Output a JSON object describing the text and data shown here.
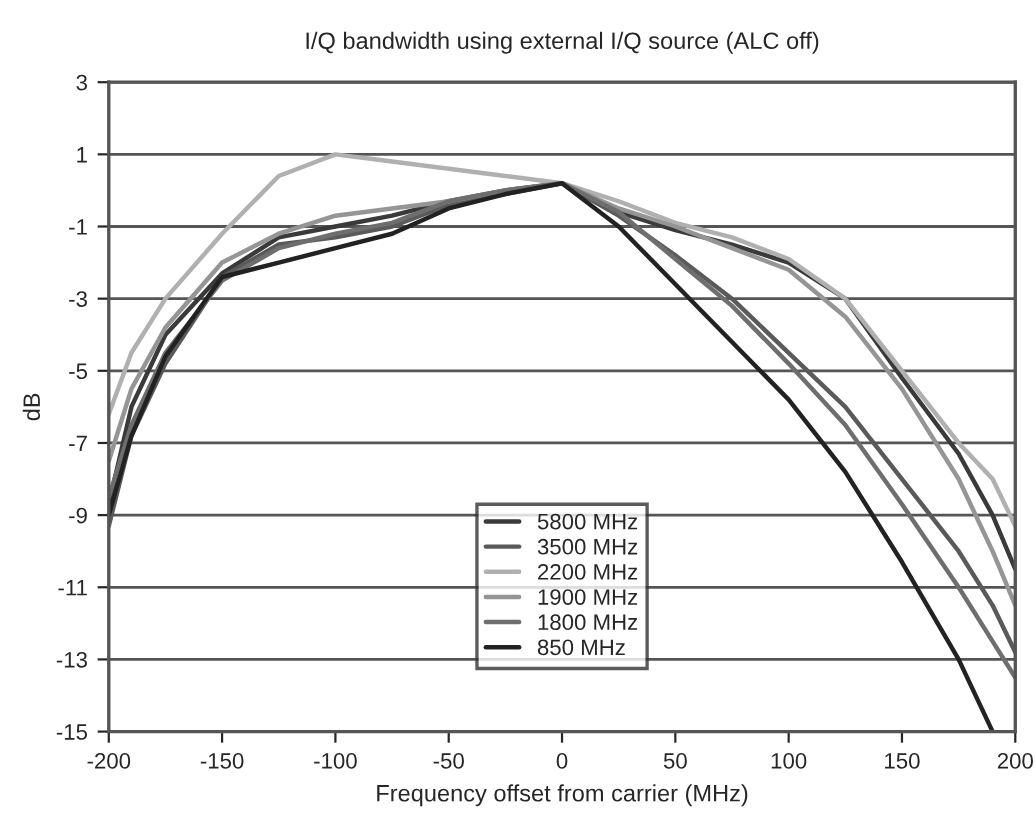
{
  "chart_data": {
    "type": "line",
    "title": "I/Q bandwidth using external I/Q source (ALC off)",
    "xlabel": "Frequency offset from carrier (MHz)",
    "ylabel": "dB",
    "x": [
      -200,
      -190,
      -175,
      -150,
      -125,
      -100,
      -75,
      -50,
      -25,
      0,
      25,
      50,
      75,
      100,
      125,
      150,
      175,
      190,
      200
    ],
    "xlim": [
      -200,
      200
    ],
    "xticks": [
      -200,
      -150,
      -100,
      -50,
      0,
      50,
      100,
      150,
      200
    ],
    "ylim": [
      -15,
      3
    ],
    "yticks": [
      -15,
      -13,
      -11,
      -9,
      -7,
      -5,
      -3,
      -1,
      1,
      3
    ],
    "grid": "y",
    "legend": "bottom",
    "line_style": "solid",
    "marker": "none",
    "series": [
      {
        "name": "5800 MHz",
        "color": "#3a3a3a",
        "values": [
          -8.7,
          -6,
          -4,
          -2.3,
          -1.3,
          -1.0,
          -0.7,
          -0.3,
          0,
          0.2,
          -0.6,
          -1.1,
          -1.5,
          -2.0,
          -3,
          -5.2,
          -7.3,
          -9,
          -10.5
        ]
      },
      {
        "name": "3500 MHz",
        "color": "#5a5a5a",
        "values": [
          -9.3,
          -6.8,
          -4.8,
          -2.4,
          -1.5,
          -1.3,
          -1.0,
          -0.4,
          -0.1,
          0.2,
          -0.7,
          -1.8,
          -3,
          -4.5,
          -6,
          -8,
          -10,
          -11.5,
          -12.8
        ]
      },
      {
        "name": "2200 MHz",
        "color": "#b0b0b0",
        "values": [
          -6.2,
          -4.5,
          -3,
          -1.2,
          0.4,
          1.0,
          0.8,
          0.6,
          0.4,
          0.2,
          -0.3,
          -0.9,
          -1.3,
          -1.9,
          -3,
          -5,
          -7,
          -8,
          -9.3
        ]
      },
      {
        "name": "1900 MHz",
        "color": "#959595",
        "values": [
          -7.5,
          -5.5,
          -3.8,
          -2.0,
          -1.2,
          -0.7,
          -0.5,
          -0.3,
          0,
          0.2,
          -0.5,
          -1.0,
          -1.6,
          -2.2,
          -3.5,
          -5.5,
          -8,
          -10,
          -11.5
        ]
      },
      {
        "name": "1800 MHz",
        "color": "#6e6e6e",
        "values": [
          -8.5,
          -6.5,
          -4.5,
          -2.5,
          -1.6,
          -1.2,
          -0.9,
          -0.3,
          0,
          0.2,
          -0.6,
          -1.9,
          -3.2,
          -4.8,
          -6.5,
          -8.7,
          -11,
          -12.5,
          -13.5
        ]
      },
      {
        "name": "850 MHz",
        "color": "#222222",
        "x": [
          -200,
          -190,
          -175,
          -150,
          -125,
          -100,
          -75,
          -50,
          -25,
          0,
          25,
          50,
          75,
          100,
          125,
          150,
          175,
          190
        ],
        "values": [
          -9.0,
          -6.8,
          -4.6,
          -2.4,
          -2.0,
          -1.6,
          -1.2,
          -0.5,
          -0.1,
          0.2,
          -1.0,
          -2.6,
          -4.2,
          -5.8,
          -7.8,
          -10.3,
          -13,
          -15
        ]
      }
    ]
  }
}
